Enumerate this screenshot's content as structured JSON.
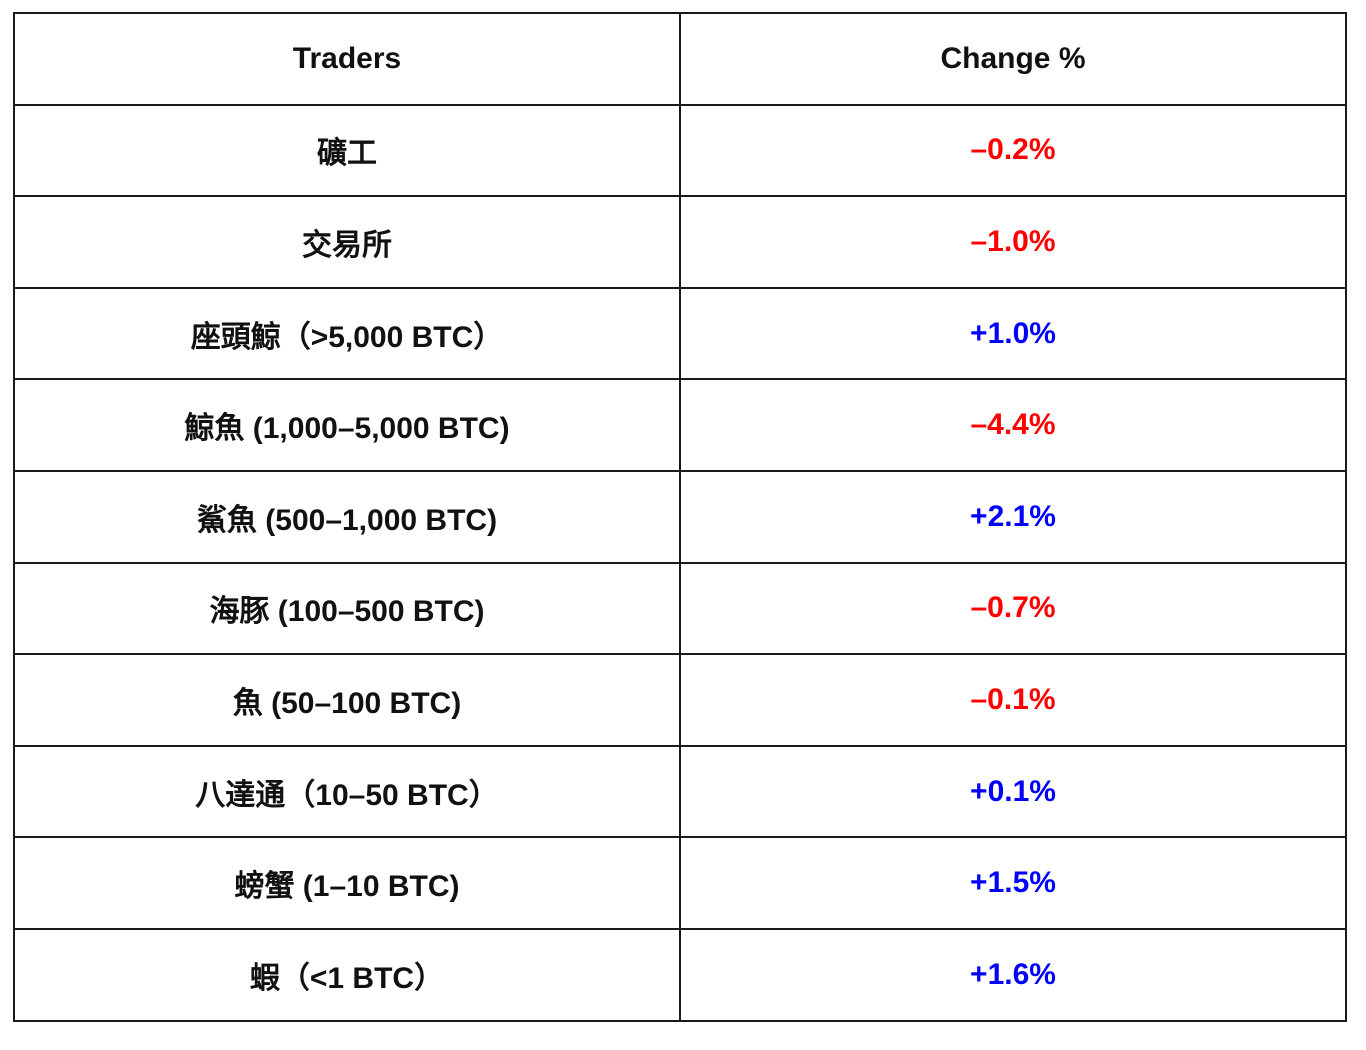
{
  "table": {
    "headers": [
      "Traders",
      "Change %"
    ],
    "rows": [
      {
        "trader": "礦工",
        "change": "–0.2%",
        "direction": "negative"
      },
      {
        "trader": "交易所",
        "change": "–1.0%",
        "direction": "negative"
      },
      {
        "trader": "座頭鯨（>5,000 BTC）",
        "change": "+1.0%",
        "direction": "positive"
      },
      {
        "trader": "鯨魚 (1,000–5,000 BTC)",
        "change": "–4.4%",
        "direction": "negative"
      },
      {
        "trader": "鯊魚 (500–1,000 BTC)",
        "change": "+2.1%",
        "direction": "positive"
      },
      {
        "trader": "海豚 (100–500 BTC)",
        "change": "–0.7%",
        "direction": "negative"
      },
      {
        "trader": "魚 (50–100 BTC)",
        "change": "–0.1%",
        "direction": "negative"
      },
      {
        "trader": "八達通（10–50 BTC）",
        "change": "+0.1%",
        "direction": "positive"
      },
      {
        "trader": "螃蟹 (1–10 BTC)",
        "change": "+1.5%",
        "direction": "positive"
      },
      {
        "trader": "蝦（<1 BTC）",
        "change": "+1.6%",
        "direction": "positive"
      }
    ]
  },
  "colors": {
    "negative": "#ff0000",
    "positive": "#0000ff",
    "text": "#111111",
    "border": "#1a1a1a"
  }
}
